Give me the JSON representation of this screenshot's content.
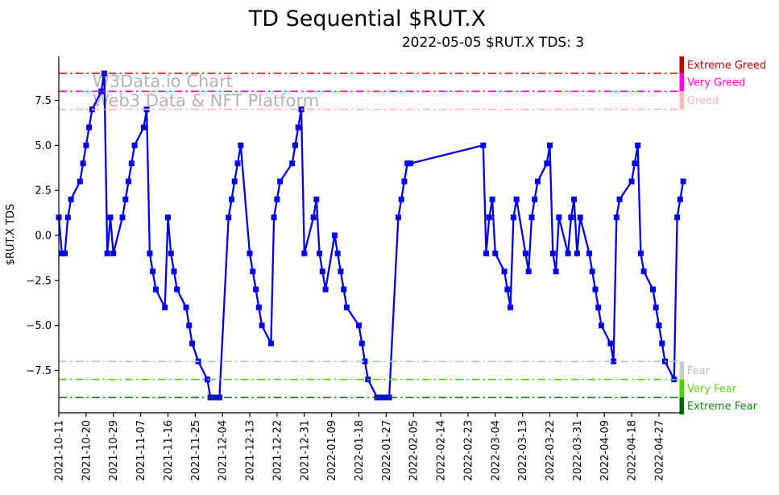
{
  "title": "TD Sequential $RUT.X",
  "subtitle": "2022-05-05 $RUT.X TDS: 3",
  "ylabel": "$RUT.X TDS",
  "watermark": {
    "line1": "W3Data.io Chart",
    "line2": "Web3 Data & NFT Platform",
    "color": "#b4b4b4"
  },
  "colors": {
    "series": "#0000ee",
    "axis": "#000000",
    "background": "#ffffff"
  },
  "chart_data": {
    "type": "line",
    "title": "TD Sequential $RUT.X",
    "subtitle": "2022-05-05 $RUT.X TDS: 3",
    "xlabel": "",
    "ylabel": "$RUT.X TDS",
    "ylim": [
      -9.9,
      9.9
    ],
    "x_start": "2021-10-11",
    "grid": false,
    "legend_position": "none",
    "marker": "square",
    "yticks": [
      {
        "v": 7.5,
        "label": "7.5"
      },
      {
        "v": 5.0,
        "label": "5.0"
      },
      {
        "v": 2.5,
        "label": "2.5"
      },
      {
        "v": 0.0,
        "label": "0.0"
      },
      {
        "v": -2.5,
        "label": "−2.5"
      },
      {
        "v": -5.0,
        "label": "−5.0"
      },
      {
        "v": -7.5,
        "label": "−7.5"
      }
    ],
    "xticks": [
      "2021-10-11",
      "2021-10-20",
      "2021-10-29",
      "2021-11-07",
      "2021-11-16",
      "2021-11-25",
      "2021-12-04",
      "2021-12-13",
      "2021-12-22",
      "2021-12-31",
      "2022-01-09",
      "2022-01-18",
      "2022-01-27",
      "2022-02-05",
      "2022-02-14",
      "2022-02-23",
      "2022-03-04",
      "2022-03-13",
      "2022-03-22",
      "2022-03-31",
      "2022-04-09",
      "2022-04-18",
      "2022-04-27"
    ],
    "reference_lines": [
      {
        "label": "Extreme Greed",
        "value": 9,
        "line_color": "#d40000",
        "bar_color": "#c40000",
        "label_color": "#cc0000"
      },
      {
        "label": "Very Greed",
        "value": 8,
        "line_color": "#ff00ff",
        "bar_color": "#ff00ff",
        "label_color": "#ff00ff"
      },
      {
        "label": "Greed",
        "value": 7,
        "line_color": "#ffb3b3",
        "bar_color": "#ffb9b9",
        "label_color": "#ffb3b3"
      },
      {
        "label": "Fear",
        "value": -7,
        "line_color": "#a8d3a8",
        "bar_color": "#c2d3c2",
        "label_color": "#a8c3a8"
      },
      {
        "label": "Very Fear",
        "value": -8,
        "line_color": "#4ad400",
        "bar_color": "#4ad400",
        "label_color": "#63d41c"
      },
      {
        "label": "Extreme Fear",
        "value": -9,
        "line_color": "#006600",
        "bar_color": "#006600",
        "label_color": "#118811"
      }
    ],
    "series": [
      {
        "name": "$RUT.X TDS",
        "color": "#0000ee",
        "points": [
          [
            "2021-10-11",
            1
          ],
          [
            "2021-10-12",
            -1
          ],
          [
            "2021-10-13",
            -1
          ],
          [
            "2021-10-14",
            1
          ],
          [
            "2021-10-15",
            2
          ],
          [
            "2021-10-18",
            3
          ],
          [
            "2021-10-19",
            4
          ],
          [
            "2021-10-20",
            5
          ],
          [
            "2021-10-21",
            6
          ],
          [
            "2021-10-22",
            7
          ],
          [
            "2021-10-25",
            8
          ],
          [
            "2021-10-26",
            9
          ],
          [
            "2021-10-27",
            -1
          ],
          [
            "2021-10-28",
            1
          ],
          [
            "2021-10-29",
            -1
          ],
          [
            "2021-11-01",
            1
          ],
          [
            "2021-11-02",
            2
          ],
          [
            "2021-11-03",
            3
          ],
          [
            "2021-11-04",
            4
          ],
          [
            "2021-11-05",
            5
          ],
          [
            "2021-11-08",
            6
          ],
          [
            "2021-11-09",
            7
          ],
          [
            "2021-11-10",
            -1
          ],
          [
            "2021-11-11",
            -2
          ],
          [
            "2021-11-12",
            -3
          ],
          [
            "2021-11-15",
            -4
          ],
          [
            "2021-11-16",
            1
          ],
          [
            "2021-11-17",
            -1
          ],
          [
            "2021-11-18",
            -2
          ],
          [
            "2021-11-19",
            -3
          ],
          [
            "2021-11-22",
            -4
          ],
          [
            "2021-11-23",
            -5
          ],
          [
            "2021-11-24",
            -6
          ],
          [
            "2021-11-26",
            -7
          ],
          [
            "2021-11-29",
            -8
          ],
          [
            "2021-11-30",
            -9
          ],
          [
            "2021-12-01",
            -9
          ],
          [
            "2021-12-02",
            -9
          ],
          [
            "2021-12-03",
            -9
          ],
          [
            "2021-12-06",
            1
          ],
          [
            "2021-12-07",
            2
          ],
          [
            "2021-12-08",
            3
          ],
          [
            "2021-12-09",
            4
          ],
          [
            "2021-12-10",
            5
          ],
          [
            "2021-12-13",
            -1
          ],
          [
            "2021-12-14",
            -2
          ],
          [
            "2021-12-15",
            -3
          ],
          [
            "2021-12-16",
            -4
          ],
          [
            "2021-12-17",
            -5
          ],
          [
            "2021-12-20",
            -6
          ],
          [
            "2021-12-21",
            1
          ],
          [
            "2021-12-22",
            2
          ],
          [
            "2021-12-23",
            3
          ],
          [
            "2021-12-27",
            4
          ],
          [
            "2021-12-28",
            5
          ],
          [
            "2021-12-29",
            6
          ],
          [
            "2021-12-30",
            7
          ],
          [
            "2021-12-31",
            -1
          ],
          [
            "2022-01-03",
            1
          ],
          [
            "2022-01-04",
            2
          ],
          [
            "2022-01-05",
            -1
          ],
          [
            "2022-01-06",
            -2
          ],
          [
            "2022-01-07",
            -3
          ],
          [
            "2022-01-10",
            0
          ],
          [
            "2022-01-11",
            -1
          ],
          [
            "2022-01-12",
            -2
          ],
          [
            "2022-01-13",
            -3
          ],
          [
            "2022-01-14",
            -4
          ],
          [
            "2022-01-18",
            -5
          ],
          [
            "2022-01-19",
            -6
          ],
          [
            "2022-01-20",
            -7
          ],
          [
            "2022-01-21",
            -8
          ],
          [
            "2022-01-24",
            -9
          ],
          [
            "2022-01-25",
            -9
          ],
          [
            "2022-01-26",
            -9
          ],
          [
            "2022-01-27",
            -9
          ],
          [
            "2022-01-28",
            -9
          ],
          [
            "2022-01-31",
            1
          ],
          [
            "2022-02-01",
            2
          ],
          [
            "2022-02-02",
            3
          ],
          [
            "2022-02-03",
            4
          ],
          [
            "2022-02-04",
            4
          ],
          [
            "2022-02-28",
            5
          ],
          [
            "2022-03-01",
            -1
          ],
          [
            "2022-03-02",
            1
          ],
          [
            "2022-03-03",
            2
          ],
          [
            "2022-03-04",
            -1
          ],
          [
            "2022-03-07",
            -2
          ],
          [
            "2022-03-08",
            -3
          ],
          [
            "2022-03-09",
            -4
          ],
          [
            "2022-03-10",
            1
          ],
          [
            "2022-03-11",
            2
          ],
          [
            "2022-03-14",
            -1
          ],
          [
            "2022-03-15",
            -2
          ],
          [
            "2022-03-16",
            1
          ],
          [
            "2022-03-17",
            2
          ],
          [
            "2022-03-18",
            3
          ],
          [
            "2022-03-21",
            4
          ],
          [
            "2022-03-22",
            5
          ],
          [
            "2022-03-23",
            -1
          ],
          [
            "2022-03-24",
            -2
          ],
          [
            "2022-03-25",
            1
          ],
          [
            "2022-03-28",
            -1
          ],
          [
            "2022-03-29",
            1
          ],
          [
            "2022-03-30",
            2
          ],
          [
            "2022-03-31",
            -1
          ],
          [
            "2022-04-01",
            1
          ],
          [
            "2022-04-04",
            -1
          ],
          [
            "2022-04-05",
            -2
          ],
          [
            "2022-04-06",
            -3
          ],
          [
            "2022-04-07",
            -4
          ],
          [
            "2022-04-08",
            -5
          ],
          [
            "2022-04-11",
            -6
          ],
          [
            "2022-04-12",
            -7
          ],
          [
            "2022-04-13",
            1
          ],
          [
            "2022-04-14",
            2
          ],
          [
            "2022-04-18",
            3
          ],
          [
            "2022-04-19",
            4
          ],
          [
            "2022-04-20",
            5
          ],
          [
            "2022-04-21",
            -1
          ],
          [
            "2022-04-22",
            -2
          ],
          [
            "2022-04-25",
            -3
          ],
          [
            "2022-04-26",
            -4
          ],
          [
            "2022-04-27",
            -5
          ],
          [
            "2022-04-28",
            -6
          ],
          [
            "2022-04-29",
            -7
          ],
          [
            "2022-05-02",
            -8
          ],
          [
            "2022-05-03",
            1
          ],
          [
            "2022-05-04",
            2
          ],
          [
            "2022-05-05",
            3
          ]
        ]
      }
    ]
  }
}
